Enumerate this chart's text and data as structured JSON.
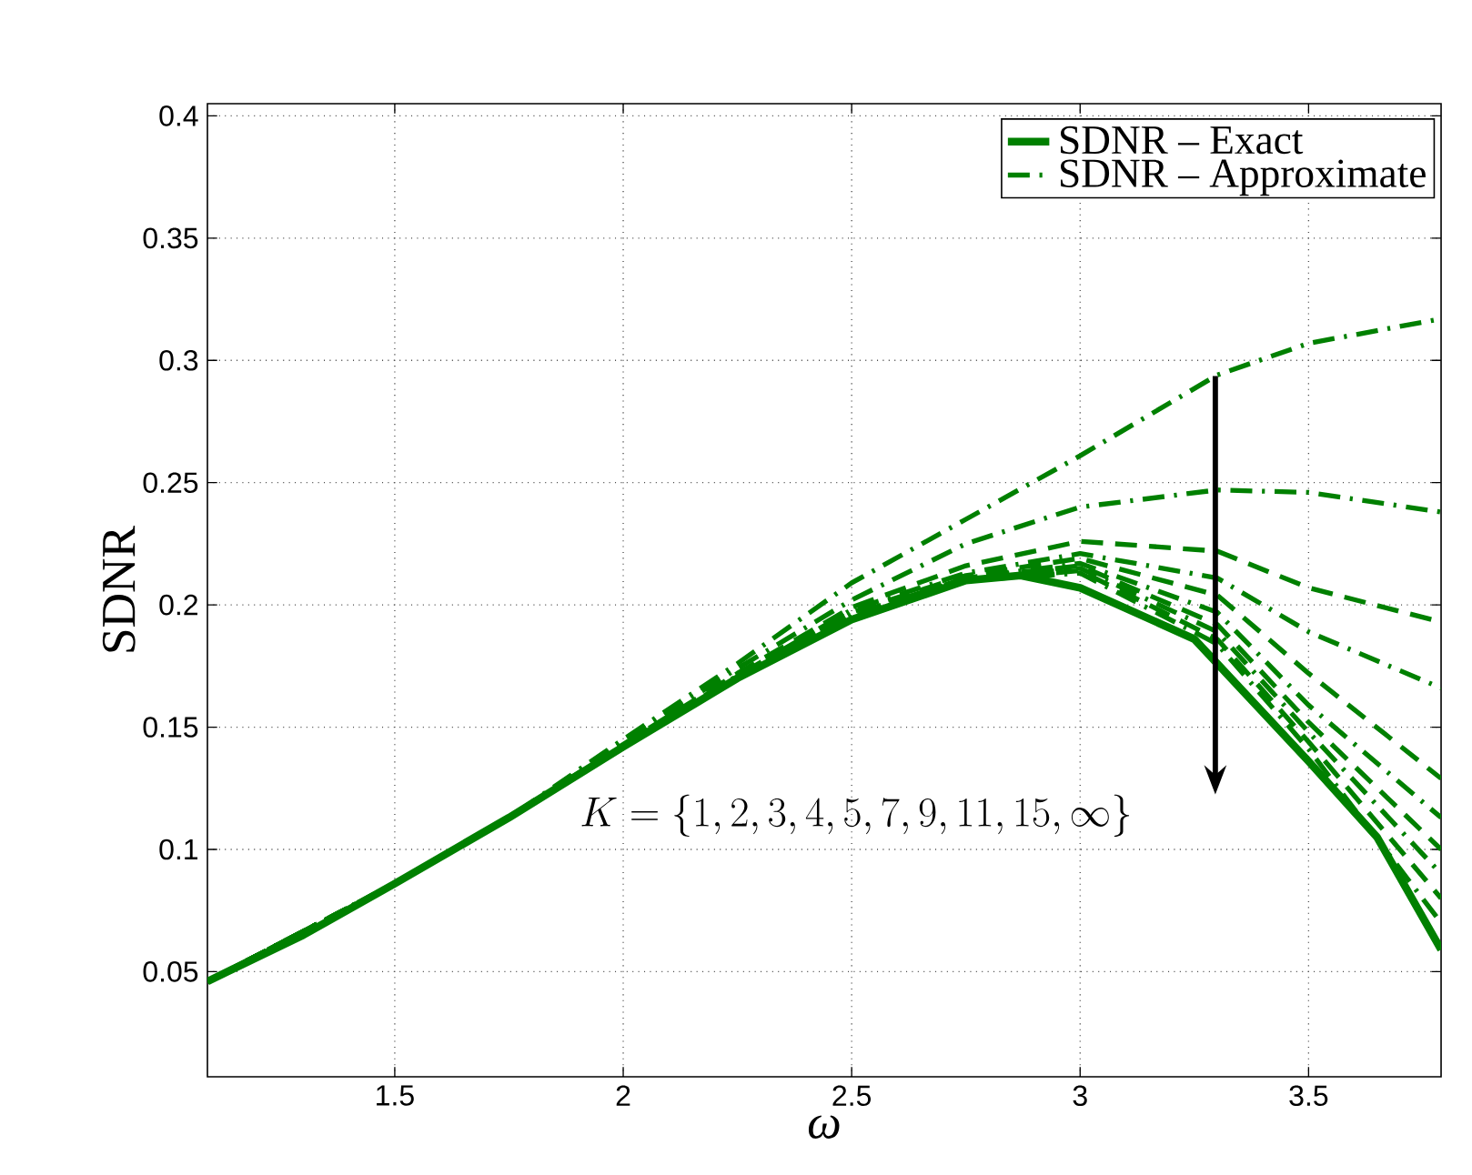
{
  "chart_data": {
    "type": "line",
    "xlabel": "ω",
    "ylabel": "SDNR",
    "x": [
      1.09,
      1.5,
      1.75,
      2.0,
      2.25,
      2.5,
      2.75,
      3.0,
      3.3,
      3.5,
      3.79
    ],
    "series": [
      {
        "name": "SDNR – Exact",
        "color": "#008000",
        "line_style": "solid",
        "x": [
          1.09,
          1.3,
          1.5,
          1.75,
          2.0,
          2.25,
          2.5,
          2.75,
          2.87,
          3.0,
          3.25,
          3.5,
          3.65,
          3.79
        ],
        "values": [
          0.046,
          0.065,
          0.086,
          0.113,
          0.142,
          0.17,
          0.194,
          0.21,
          0.212,
          0.207,
          0.186,
          0.136,
          0.105,
          0.059
        ]
      },
      {
        "name": "SDNR – Approximate",
        "color": "#008000",
        "line_style": "dashdot",
        "values": [
          0.046,
          0.086,
          0.113,
          0.145,
          0.176,
          0.209,
          0.235,
          0.261,
          0.294,
          0.307,
          0.317
        ]
      },
      {
        "color": "#008000",
        "line_style": "dashdot",
        "values": [
          0.046,
          0.086,
          0.113,
          0.144,
          0.174,
          0.202,
          0.225,
          0.24,
          0.247,
          0.246,
          0.238
        ]
      },
      {
        "color": "#008000",
        "line_style": "dashed",
        "values": [
          0.046,
          0.086,
          0.113,
          0.143,
          0.172,
          0.199,
          0.216,
          0.226,
          0.222,
          0.207,
          0.193
        ]
      },
      {
        "color": "#008000",
        "line_style": "dashdot",
        "values": [
          0.046,
          0.086,
          0.113,
          0.143,
          0.171,
          0.198,
          0.213,
          0.221,
          0.211,
          0.189,
          0.166
        ]
      },
      {
        "color": "#008000",
        "line_style": "dashed",
        "values": [
          0.046,
          0.086,
          0.113,
          0.142,
          0.171,
          0.197,
          0.212,
          0.219,
          0.204,
          0.172,
          0.129
        ]
      },
      {
        "color": "#008000",
        "line_style": "dashdot",
        "values": [
          0.046,
          0.086,
          0.113,
          0.142,
          0.17,
          0.196,
          0.211,
          0.217,
          0.197,
          0.159,
          0.113
        ]
      },
      {
        "color": "#008000",
        "line_style": "dashed",
        "values": [
          0.046,
          0.086,
          0.113,
          0.142,
          0.17,
          0.195,
          0.211,
          0.216,
          0.192,
          0.152,
          0.1
        ]
      },
      {
        "color": "#008000",
        "line_style": "dashdot",
        "values": [
          0.046,
          0.086,
          0.113,
          0.142,
          0.17,
          0.195,
          0.21,
          0.215,
          0.189,
          0.148,
          0.09
        ]
      },
      {
        "color": "#008000",
        "line_style": "dashed",
        "values": [
          0.046,
          0.086,
          0.113,
          0.142,
          0.17,
          0.195,
          0.21,
          0.214,
          0.186,
          0.144,
          0.08
        ]
      },
      {
        "color": "#008000",
        "line_style": "dashdot",
        "values": [
          0.046,
          0.086,
          0.113,
          0.142,
          0.17,
          0.194,
          0.21,
          0.213,
          0.184,
          0.141,
          0.07
        ]
      }
    ],
    "xlim": [
      1.09,
      3.79
    ],
    "ylim": [
      0.007,
      0.405
    ],
    "xticks": [
      1.5,
      2,
      2.5,
      3,
      3.5
    ],
    "yticks": [
      0.05,
      0.1,
      0.15,
      0.2,
      0.25,
      0.3,
      0.35,
      0.4
    ],
    "annotations": [
      "K=\\{1,2,3,4,5,7,9,11,15,\\infty\\}"
    ],
    "grid": true,
    "legend": "top right"
  }
}
